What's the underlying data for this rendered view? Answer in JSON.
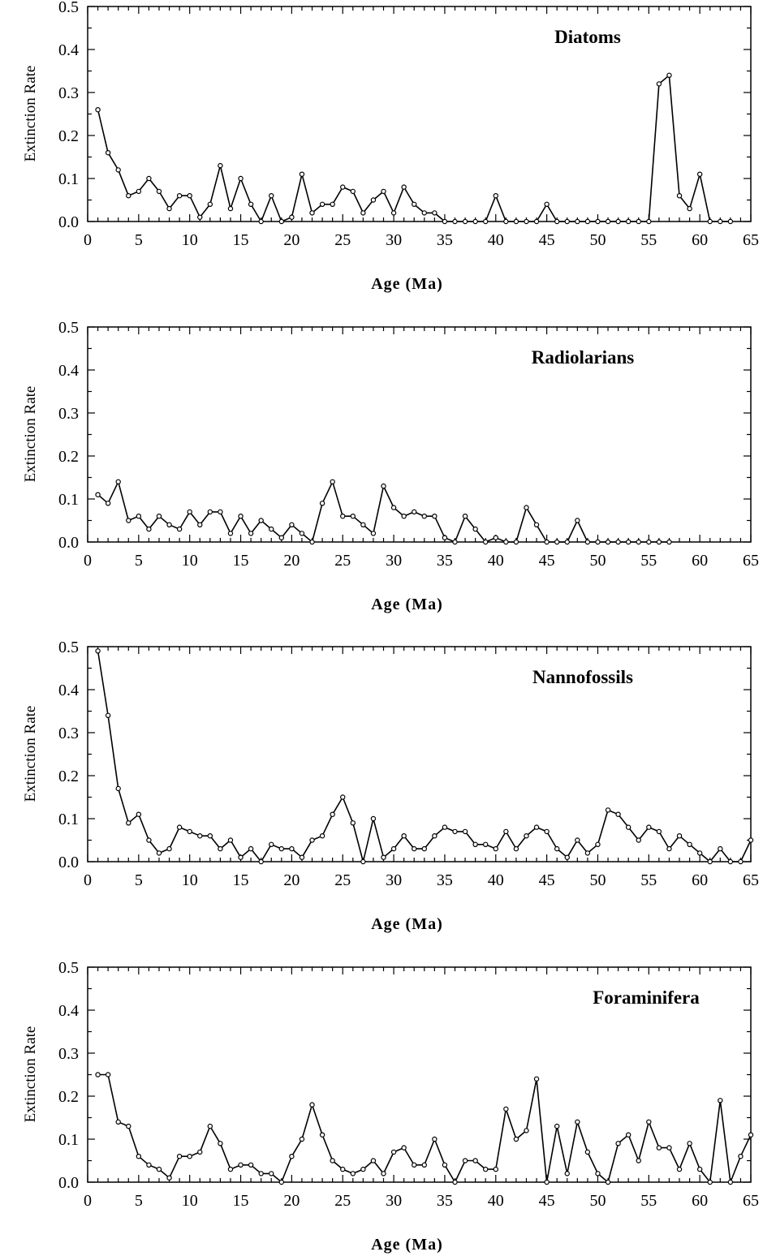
{
  "chart_data": [
    {
      "type": "line",
      "title": "Diatoms",
      "xlabel": "Age (Ma)",
      "ylabel": "Extinction Rate",
      "xlim": [
        0,
        65
      ],
      "ylim": [
        0,
        0.5
      ],
      "xticks": [
        "0",
        "5",
        "10",
        "15",
        "20",
        "25",
        "30",
        "35",
        "40",
        "45",
        "50",
        "55",
        "60",
        "65"
      ],
      "yticks": [
        "0.0",
        "0.1",
        "0.2",
        "0.3",
        "0.4",
        "0.5"
      ],
      "grid": false,
      "series": [
        {
          "x": [
            1,
            2,
            3,
            4,
            5,
            6,
            7,
            8,
            9,
            10,
            11,
            12,
            13,
            14,
            15,
            16,
            17,
            18,
            19,
            20,
            21,
            22,
            23,
            24,
            25,
            26,
            27,
            28,
            29,
            30,
            31,
            32,
            33,
            34,
            35,
            36,
            37,
            38,
            39,
            40,
            41,
            42,
            43,
            44,
            45,
            46,
            47,
            48,
            49,
            50,
            51,
            52,
            53,
            54,
            55,
            56,
            57,
            58,
            59,
            60,
            61,
            62,
            63
          ],
          "y": [
            0.26,
            0.16,
            0.12,
            0.06,
            0.07,
            0.1,
            0.07,
            0.03,
            0.06,
            0.06,
            0.01,
            0.04,
            0.13,
            0.03,
            0.1,
            0.04,
            0.0,
            0.06,
            0.0,
            0.01,
            0.11,
            0.02,
            0.04,
            0.04,
            0.08,
            0.07,
            0.02,
            0.05,
            0.07,
            0.02,
            0.08,
            0.04,
            0.02,
            0.02,
            0.0,
            0.0,
            0.0,
            0.0,
            0.0,
            0.06,
            0.0,
            0.0,
            0.0,
            0.0,
            0.04,
            0.0,
            0.0,
            0.0,
            0.0,
            0.0,
            0.0,
            0.0,
            0.0,
            0.0,
            0.0,
            0.32,
            0.34,
            0.06,
            0.03,
            0.11,
            0.0,
            0.0,
            0.0
          ]
        }
      ]
    },
    {
      "type": "line",
      "title": "Radiolarians",
      "xlabel": "Age (Ma)",
      "ylabel": "Extinction Rate",
      "xlim": [
        0,
        65
      ],
      "ylim": [
        0,
        0.5
      ],
      "xticks": [
        "0",
        "5",
        "10",
        "15",
        "20",
        "25",
        "30",
        "35",
        "40",
        "45",
        "50",
        "55",
        "60",
        "65"
      ],
      "yticks": [
        "0.0",
        "0.1",
        "0.2",
        "0.3",
        "0.4",
        "0.5"
      ],
      "grid": false,
      "series": [
        {
          "x": [
            1,
            2,
            3,
            4,
            5,
            6,
            7,
            8,
            9,
            10,
            11,
            12,
            13,
            14,
            15,
            16,
            17,
            18,
            19,
            20,
            21,
            22,
            23,
            24,
            25,
            26,
            27,
            28,
            29,
            30,
            31,
            32,
            33,
            34,
            35,
            36,
            37,
            38,
            39,
            40,
            41,
            42,
            43,
            44,
            45,
            46,
            47,
            48,
            49,
            50,
            51,
            52,
            53,
            54,
            55,
            56,
            57
          ],
          "y": [
            0.11,
            0.09,
            0.14,
            0.05,
            0.06,
            0.03,
            0.06,
            0.04,
            0.03,
            0.07,
            0.04,
            0.07,
            0.07,
            0.02,
            0.06,
            0.02,
            0.05,
            0.03,
            0.01,
            0.04,
            0.02,
            0.0,
            0.09,
            0.14,
            0.06,
            0.06,
            0.04,
            0.02,
            0.13,
            0.08,
            0.06,
            0.07,
            0.06,
            0.06,
            0.01,
            0.0,
            0.06,
            0.03,
            0.0,
            0.01,
            0.0,
            0.0,
            0.08,
            0.04,
            0.0,
            0.0,
            0.0,
            0.05,
            0.0,
            0.0,
            0.0,
            0.0,
            0.0,
            0.0,
            0.0,
            0.0,
            0.0
          ]
        }
      ]
    },
    {
      "type": "line",
      "title": "Nannofossils",
      "xlabel": "Age (Ma)",
      "ylabel": "Extinction Rate",
      "xlim": [
        0,
        65
      ],
      "ylim": [
        0,
        0.5
      ],
      "xticks": [
        "0",
        "5",
        "10",
        "15",
        "20",
        "25",
        "30",
        "35",
        "40",
        "45",
        "50",
        "55",
        "60",
        "65"
      ],
      "yticks": [
        "0.0",
        "0.1",
        "0.2",
        "0.3",
        "0.4",
        "0.5"
      ],
      "grid": false,
      "series": [
        {
          "x": [
            1,
            2,
            3,
            4,
            5,
            6,
            7,
            8,
            9,
            10,
            11,
            12,
            13,
            14,
            15,
            16,
            17,
            18,
            19,
            20,
            21,
            22,
            23,
            24,
            25,
            26,
            27,
            28,
            29,
            30,
            31,
            32,
            33,
            34,
            35,
            36,
            37,
            38,
            39,
            40,
            41,
            42,
            43,
            44,
            45,
            46,
            47,
            48,
            49,
            50,
            51,
            52,
            53,
            54,
            55,
            56,
            57,
            58,
            59,
            60,
            61,
            62,
            63,
            64,
            65
          ],
          "y": [
            0.49,
            0.34,
            0.17,
            0.09,
            0.11,
            0.05,
            0.02,
            0.03,
            0.08,
            0.07,
            0.06,
            0.06,
            0.03,
            0.05,
            0.01,
            0.03,
            0.0,
            0.04,
            0.03,
            0.03,
            0.01,
            0.05,
            0.06,
            0.11,
            0.15,
            0.09,
            0.0,
            0.1,
            0.01,
            0.03,
            0.06,
            0.03,
            0.03,
            0.06,
            0.08,
            0.07,
            0.07,
            0.04,
            0.04,
            0.03,
            0.07,
            0.03,
            0.06,
            0.08,
            0.07,
            0.03,
            0.01,
            0.05,
            0.02,
            0.04,
            0.12,
            0.11,
            0.08,
            0.05,
            0.08,
            0.07,
            0.03,
            0.06,
            0.04,
            0.02,
            0.0,
            0.03,
            0.0,
            0.0,
            0.05
          ]
        }
      ]
    },
    {
      "type": "line",
      "title": "Foraminifera",
      "xlabel": "Age (Ma)",
      "ylabel": "Extinction Rate",
      "xlim": [
        0,
        65
      ],
      "ylim": [
        0,
        0.5
      ],
      "xticks": [
        "0",
        "5",
        "10",
        "15",
        "20",
        "25",
        "30",
        "35",
        "40",
        "45",
        "50",
        "55",
        "60",
        "65"
      ],
      "yticks": [
        "0.0",
        "0.1",
        "0.2",
        "0.3",
        "0.4",
        "0.5"
      ],
      "grid": false,
      "series": [
        {
          "x": [
            1,
            2,
            3,
            4,
            5,
            6,
            7,
            8,
            9,
            10,
            11,
            12,
            13,
            14,
            15,
            16,
            17,
            18,
            19,
            20,
            21,
            22,
            23,
            24,
            25,
            26,
            27,
            28,
            29,
            30,
            31,
            32,
            33,
            34,
            35,
            36,
            37,
            38,
            39,
            40,
            41,
            42,
            43,
            44,
            45,
            46,
            47,
            48,
            49,
            50,
            51,
            52,
            53,
            54,
            55,
            56,
            57,
            58,
            59,
            60,
            61,
            62,
            63,
            64,
            65
          ],
          "y": [
            0.25,
            0.25,
            0.14,
            0.13,
            0.06,
            0.04,
            0.03,
            0.01,
            0.06,
            0.06,
            0.07,
            0.13,
            0.09,
            0.03,
            0.04,
            0.04,
            0.02,
            0.02,
            0.0,
            0.06,
            0.1,
            0.18,
            0.11,
            0.05,
            0.03,
            0.02,
            0.03,
            0.05,
            0.02,
            0.07,
            0.08,
            0.04,
            0.04,
            0.1,
            0.04,
            0.0,
            0.05,
            0.05,
            0.03,
            0.03,
            0.17,
            0.1,
            0.12,
            0.24,
            0.0,
            0.13,
            0.02,
            0.14,
            0.07,
            0.02,
            0.0,
            0.09,
            0.11,
            0.05,
            0.14,
            0.08,
            0.08,
            0.03,
            0.09,
            0.03,
            0.0,
            0.19,
            0.0,
            0.06,
            0.11
          ]
        }
      ]
    }
  ]
}
